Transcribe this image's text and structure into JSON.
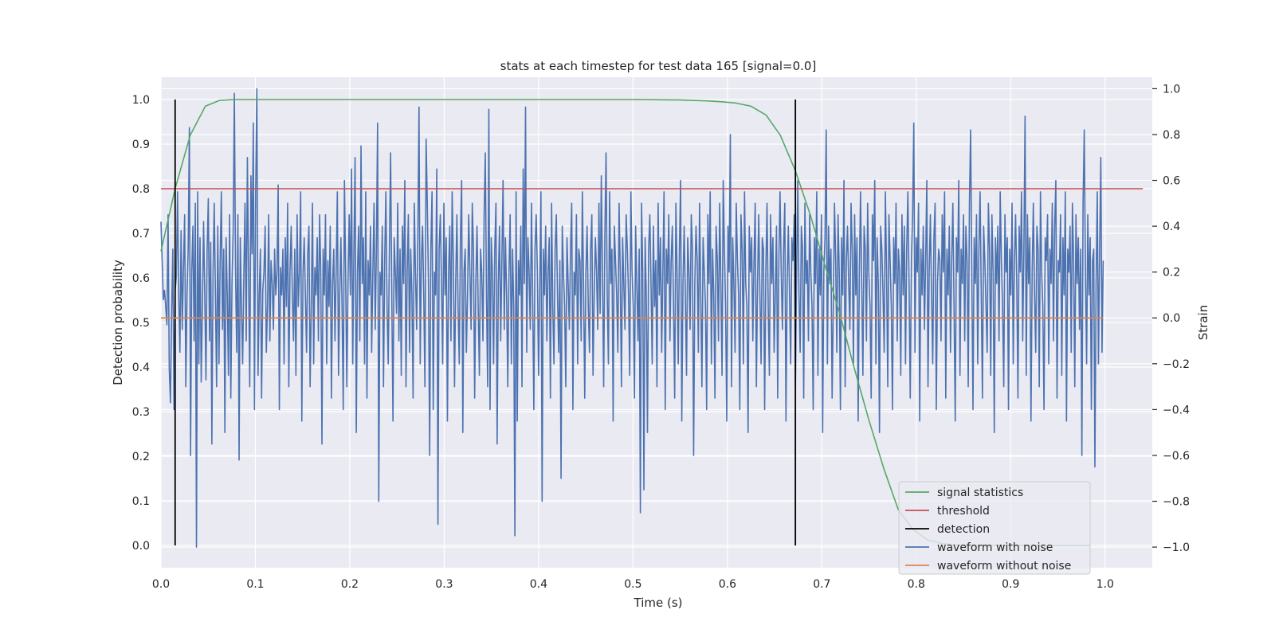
{
  "chart_data": {
    "type": "line",
    "title": "stats at each timestep for test data 165 [signal=0.0]",
    "xlabel": "Time (s)",
    "ylabel": "Detection probability",
    "y2label": "Strain",
    "xlim": [
      0.0,
      1.05
    ],
    "ylim": [
      -0.05,
      1.05
    ],
    "y2lim": [
      -1.09,
      1.05
    ],
    "x_ticks": [
      0.0,
      0.1,
      0.2,
      0.3,
      0.4,
      0.5,
      0.6,
      0.7,
      0.8,
      0.9,
      1.0
    ],
    "x_tick_labels": [
      "0.0",
      "0.1",
      "0.2",
      "0.3",
      "0.4",
      "0.5",
      "0.6",
      "0.7",
      "0.8",
      "0.9",
      "1.0"
    ],
    "y_ticks": [
      0.0,
      0.1,
      0.2,
      0.3,
      0.4,
      0.5,
      0.6,
      0.7,
      0.8,
      0.9,
      1.0
    ],
    "y_tick_labels": [
      "0.0",
      "0.1",
      "0.2",
      "0.3",
      "0.4",
      "0.5",
      "0.6",
      "0.7",
      "0.8",
      "0.9",
      "1.0"
    ],
    "y2_ticks": [
      -1.0,
      -0.8,
      -0.6,
      -0.4,
      -0.2,
      0.0,
      0.2,
      0.4,
      0.6,
      0.8,
      1.0
    ],
    "y2_tick_labels": [
      "−1.0",
      "−0.8",
      "−0.6",
      "−0.4",
      "−0.2",
      "0.0",
      "0.2",
      "0.4",
      "0.6",
      "0.8",
      "1.0"
    ],
    "grid": true,
    "legend_position": "lower-right",
    "colors": {
      "background": "#eaeaf2",
      "grid": "#ffffff",
      "signal_statistics": "#55a868",
      "threshold": "#c44e52",
      "detection": "#000000",
      "waveform_with_noise": "#4c72b0",
      "waveform_without_noise": "#dd8452"
    },
    "series": [
      {
        "name": "signal statistics",
        "axis": "left",
        "x": [
          0.0,
          0.015,
          0.031,
          0.047,
          0.062,
          0.078,
          0.094,
          0.2,
          0.3,
          0.4,
          0.5,
          0.55,
          0.578,
          0.594,
          0.609,
          0.625,
          0.641,
          0.656,
          0.672,
          0.688,
          0.703,
          0.719,
          0.734,
          0.75,
          0.766,
          0.781,
          0.797,
          0.812,
          0.828,
          0.844,
          0.875,
          0.9,
          0.95,
          0.984
        ],
        "y": [
          0.66,
          0.8,
          0.92,
          0.985,
          0.998,
          1.0,
          1.0,
          1.0,
          1.0,
          1.0,
          1.0,
          0.999,
          0.997,
          0.995,
          0.992,
          0.985,
          0.965,
          0.92,
          0.84,
          0.74,
          0.63,
          0.52,
          0.4,
          0.28,
          0.17,
          0.08,
          0.035,
          0.012,
          0.004,
          0.001,
          0.0,
          0.0,
          0.0,
          0.0
        ]
      },
      {
        "name": "threshold",
        "axis": "left",
        "x": [
          0.0,
          1.04
        ],
        "y": [
          0.8,
          0.8
        ]
      },
      {
        "name": "detection",
        "axis": "left",
        "segments": [
          {
            "x": 0.015,
            "y": [
              0.0,
              1.0
            ]
          },
          {
            "x": 0.672,
            "y": [
              0.0,
              1.0
            ]
          }
        ]
      },
      {
        "name": "waveform with noise",
        "axis": "right",
        "x_start": 0.0,
        "x_end": 0.998,
        "y": [
          0.42,
          0.25,
          0.08,
          0.12,
          0.05,
          -0.03,
          0.45,
          -0.22,
          -0.37,
          0.02,
          0.3,
          -0.4,
          0.12,
          0.18,
          0.55,
          0.1,
          -0.15,
          0.38,
          -0.05,
          0.22,
          0.45,
          -0.3,
          0.1,
          0.3,
          0.83,
          -0.6,
          0.2,
          0.4,
          -0.1,
          0.5,
          -1.0,
          0.55,
          -0.2,
          0.35,
          -0.28,
          0.05,
          0.42,
          0.1,
          -0.27,
          0.3,
          0.52,
          -0.1,
          0.33,
          -0.55,
          0.2,
          0.5,
          0.1,
          -0.3,
          0.4,
          -0.2,
          0.25,
          0.55,
          -0.05,
          0.3,
          -0.5,
          0.35,
          0.1,
          -0.25,
          0.45,
          -0.35,
          0.15,
          0.38,
          0.98,
          0.2,
          -0.15,
          0.45,
          -0.62,
          0.35,
          0.05,
          -0.2,
          0.18,
          0.5,
          -0.1,
          0.7,
          0.2,
          -0.3,
          0.62,
          0.28,
          0.85,
          -0.4,
          0.55,
          1.0,
          -0.25,
          0.1,
          0.3,
          -0.35,
          0.12,
          0.2,
          0.4,
          -0.15,
          0.05,
          0.45,
          -0.1,
          0.25,
          0.15,
          -0.05,
          0.3,
          0.1,
          0.2,
          0.58,
          -0.4,
          0.22,
          0.1,
          0.3,
          -0.2,
          0.35,
          0.05,
          0.5,
          -0.3,
          0.2,
          0.4,
          0.1,
          -0.1,
          0.3,
          -0.25,
          0.45,
          0.05,
          0.2,
          0.55,
          -0.45,
          0.2,
          0.35,
          0.1,
          -0.15,
          0.28,
          0.4,
          -0.3,
          0.05,
          0.5,
          -0.2,
          0.22,
          0.1,
          0.35,
          -0.1,
          0.45,
          0.2,
          -0.55,
          0.3,
          0.1,
          0.45,
          -0.2,
          0.25,
          0.05,
          0.4,
          -0.35,
          0.15,
          0.3,
          -0.1,
          0.2,
          0.55,
          -0.25,
          0.1,
          0.35,
          0.05,
          -0.4,
          0.6,
          0.2,
          -0.3,
          0.15,
          0.45,
          0.1,
          0.65,
          -0.2,
          0.3,
          0.7,
          -0.5,
          0.2,
          0.4,
          -0.1,
          0.75,
          0.15,
          0.35,
          -0.2,
          0.55,
          -0.35,
          0.25,
          0.1,
          0.4,
          -0.15,
          0.2,
          0.5,
          -0.05,
          0.3,
          0.85,
          -0.8,
          0.2,
          0.1,
          0.4,
          -0.3,
          0.25,
          0.55,
          0.05,
          -0.2,
          0.3,
          0.72,
          0.1,
          -0.45,
          0.35,
          0.2,
          0.02,
          0.5,
          -0.1,
          0.3,
          -0.25,
          0.4,
          0.15,
          0.6,
          -0.3,
          0.2,
          0.45,
          -0.15,
          0.3,
          0.1,
          -0.35,
          0.5,
          0.2,
          -0.05,
          0.35,
          0.92,
          -0.2,
          0.25,
          0.4,
          0.1,
          -0.3,
          0.78,
          0.5,
          0.15,
          -0.6,
          0.3,
          0.55,
          -0.4,
          0.2,
          0.1,
          0.65,
          -0.9,
          0.3,
          0.45,
          0.15,
          -0.2,
          0.5,
          0.1,
          0.35,
          -0.45,
          0.2,
          0.4,
          -0.1,
          0.55,
          0.25,
          -0.3,
          0.15,
          0.45,
          0.05,
          -0.2,
          0.35,
          0.6,
          -0.5,
          0.2,
          0.3,
          -0.15,
          0.1,
          0.45,
          0.2,
          -0.05,
          0.5,
          0.3,
          -0.35,
          0.15,
          0.4,
          0.05,
          -0.25,
          0.3,
          0.2,
          -0.1,
          0.45,
          0.72,
          0.1,
          -0.3,
          0.91,
          -0.4,
          0.35,
          0.2,
          -0.2,
          0.3,
          0.5,
          -0.55,
          0.15,
          0.4,
          -0.1,
          0.25,
          0.6,
          -0.05,
          0.35,
          0.1,
          -0.3,
          0.2,
          0.45,
          -0.2,
          0.3,
          0.05,
          -0.95,
          0.55,
          -0.45,
          0.25,
          0.1,
          0.4,
          -0.3,
          0.65,
          0.15,
          0.92,
          -0.15,
          0.35,
          0.2,
          -0.05,
          0.5,
          0.1,
          -0.4,
          0.3,
          0.45,
          0.2,
          -0.25,
          0.15,
          0.55,
          -0.8,
          0.3,
          0.1,
          0.4,
          -0.1,
          0.2,
          0.35,
          -0.35,
          0.5,
          0.05,
          -0.2,
          0.3,
          0.45,
          0.1,
          -0.15,
          0.25,
          -0.7,
          0.4,
          0.2,
          0.05,
          -0.3,
          0.35,
          0.15,
          -0.05,
          0.3,
          0.5,
          -0.4,
          0.2,
          0.1,
          0.45,
          -0.2,
          0.3,
          0.25,
          -0.1,
          0.55,
          0.15,
          -0.35,
          0.2,
          0.4,
          0.05,
          -0.15,
          0.3,
          0.45,
          -0.25,
          0.1,
          0.35,
          0.2,
          -0.05,
          0.5,
          0.02,
          0.62,
          0.2,
          -0.3,
          0.35,
          0.72,
          0.1,
          -0.2,
          0.55,
          0.15,
          0.3,
          -0.45,
          0.4,
          0.25,
          0.1,
          -0.15,
          0.5,
          0.2,
          -0.3,
          0.35,
          0.15,
          -0.05,
          0.45,
          0.3,
          0.1,
          -0.25,
          0.55,
          0.2,
          0.05,
          -0.35,
          0.4,
          0.15,
          -0.1,
          0.3,
          -0.85,
          0.5,
          0.2,
          -0.75,
          0.35,
          0.1,
          -0.5,
          0.3,
          0.45,
          0.15,
          -0.2,
          0.4,
          0.05,
          0.25,
          -0.3,
          0.5,
          0.1,
          0.35,
          -0.15,
          0.2,
          0.55,
          -0.4,
          0.3,
          0.15,
          0.45,
          -0.1,
          0.25,
          0.4,
          0.05,
          -0.35,
          0.5,
          0.2,
          -0.2,
          0.3,
          0.6,
          -0.45,
          0.15,
          0.4,
          0.1,
          -0.25,
          0.35,
          0.2,
          -0.05,
          0.45,
          0.3,
          -0.6,
          0.15,
          0.4,
          0.25,
          -0.15,
          0.5,
          0.1,
          -0.3,
          0.35,
          0.2,
          0.05,
          -0.4,
          0.45,
          0.15,
          0.55,
          -0.2,
          0.3,
          0.1,
          -0.35,
          0.4,
          0.25,
          -0.1,
          0.5,
          0.15,
          -0.25,
          0.6,
          0.3,
          0.05,
          -0.45,
          0.4,
          0.2,
          0.8,
          -0.3,
          0.35,
          0.15,
          -0.15,
          0.5,
          0.25,
          0.1,
          -0.4,
          0.45,
          0.3,
          -0.2,
          0.55,
          0.15,
          0.05,
          -0.5,
          0.4,
          0.2,
          0.35,
          -0.1,
          0.25,
          0.5,
          -0.3,
          0.15,
          0.45,
          0.1,
          -0.2,
          0.35,
          0.3,
          -0.4,
          0.2,
          0.5,
          0.05,
          -0.25,
          0.45,
          0.15,
          0.35,
          -0.15,
          0.1,
          0.4,
          -0.35,
          0.25,
          0.55,
          0.2,
          -0.05,
          0.3,
          0.5,
          -0.45,
          0.15,
          0.4,
          0.1,
          -0.2,
          0.35,
          0.25,
          0.45,
          -0.3,
          0.2,
          0.6,
          0.1,
          -0.15,
          0.4,
          0.3,
          -0.35,
          0.5,
          0.15,
          0.25,
          -0.1,
          0.45,
          0.2,
          0.05,
          -0.4,
          0.35,
          0.15,
          0.55,
          -0.25,
          0.3,
          0.1,
          0.45,
          -0.5,
          0.2,
          0.35,
          0.82,
          -0.2,
          0.4,
          0.15,
          0.3,
          -0.35,
          0.05,
          0.5,
          0.25,
          -0.15,
          0.45,
          0.2,
          -0.4,
          0.35,
          0.1,
          0.6,
          -0.3,
          0.25,
          0.4,
          0.15,
          -0.05,
          0.5,
          0.3,
          -0.2,
          0.45,
          0.1,
          0.35,
          -0.45,
          0.2,
          0.55,
          0.15,
          -0.25,
          0.4,
          0.3,
          -0.1,
          0.5,
          0.2,
          0.05,
          -0.35,
          0.45,
          0.25,
          0.6,
          -0.2,
          0.35,
          0.15,
          -0.5,
          0.4,
          0.3,
          0.1,
          -0.15,
          0.55,
          0.2,
          -0.3,
          0.45,
          0.25,
          0.05,
          -0.4,
          0.35,
          0.15,
          0.5,
          -0.1,
          0.3,
          0.2,
          -0.25,
          0.45,
          0.1,
          0.4,
          -0.2,
          0.3,
          0.55,
          0.15,
          -0.35,
          0.25,
          0.45,
          0.85,
          -0.15,
          0.35,
          0.2,
          0.5,
          -0.45,
          0.3,
          0.1,
          0.4,
          -0.05,
          0.25,
          0.6,
          -0.3,
          0.2,
          0.45,
          0.1,
          -0.2,
          0.35,
          0.5,
          -0.4,
          0.15,
          0.3,
          0.25,
          -0.1,
          0.45,
          0.2,
          0.55,
          -0.35,
          0.3,
          0.1,
          0.4,
          -0.15,
          0.25,
          0.5,
          0.05,
          -0.45,
          0.35,
          0.2,
          0.6,
          -0.25,
          0.3,
          0.15,
          0.45,
          -0.1,
          0.4,
          0.25,
          -0.3,
          0.5,
          0.82,
          0.2,
          -0.4,
          0.35,
          0.15,
          0.45,
          -0.2,
          0.3,
          0.55,
          0.1,
          -0.35,
          0.4,
          0.25,
          0.05,
          -0.15,
          0.5,
          0.3,
          -0.25,
          0.45,
          0.2,
          -0.5,
          0.35,
          0.15,
          0.4,
          -0.1,
          0.55,
          0.25,
          0.05,
          -0.3,
          0.45,
          0.2,
          0.35,
          -0.4,
          0.3,
          0.1,
          0.5,
          -0.2,
          0.25,
          0.45,
          0.15,
          -0.35,
          0.4,
          0.2,
          0.55,
          -0.1,
          0.3,
          0.88,
          -0.25,
          0.45,
          0.15,
          0.35,
          -0.45,
          0.2,
          0.5,
          0.1,
          -0.15,
          0.4,
          0.3,
          -0.3,
          0.55,
          0.2,
          0.05,
          -0.4,
          0.35,
          0.25,
          0.45,
          -0.2,
          0.3,
          0.15,
          0.5,
          -0.1,
          0.4,
          0.6,
          -0.35,
          0.25,
          0.2,
          0.45,
          -0.25,
          0.35,
          0.1,
          0.55,
          -0.45,
          0.3,
          0.2,
          0.4,
          -0.15,
          0.5,
          0.25,
          -0.3,
          0.45,
          0.15,
          0.35,
          -0.05,
          0.3,
          -0.6,
          0.5,
          0.82,
          0.2,
          -0.2,
          0.45,
          0.1,
          0.35,
          -0.4,
          0.25,
          0.3,
          -0.65,
          0.15,
          0.55,
          -0.2,
          0.3,
          0.7,
          -0.15,
          0.25
        ]
      },
      {
        "name": "waveform without noise",
        "axis": "right",
        "x": [
          0.0,
          0.998
        ],
        "y": [
          0.0,
          0.0
        ]
      }
    ]
  }
}
